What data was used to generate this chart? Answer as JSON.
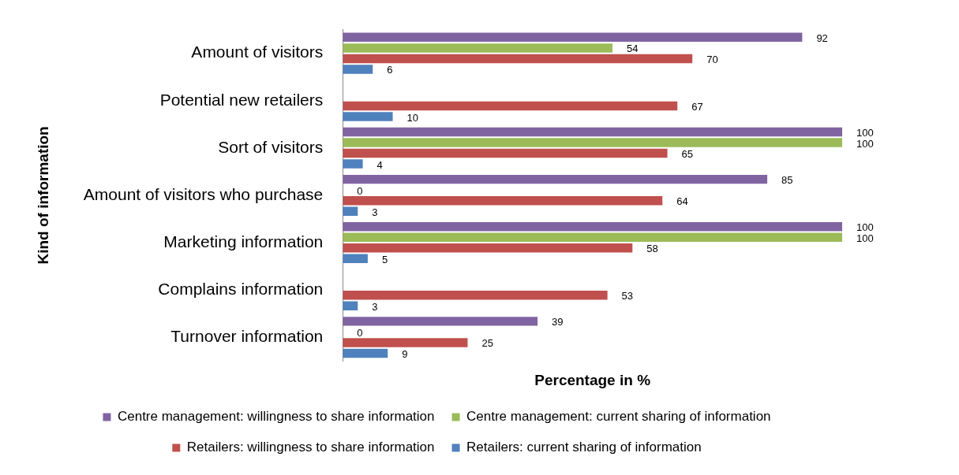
{
  "chart_data": {
    "type": "bar",
    "orientation": "horizontal",
    "xlabel": "Percentage in %",
    "ylabel": "Kind of information",
    "categories": [
      "Amount of visitors",
      "Potential new retailers",
      "Sort of visitors",
      "Amount of visitors who purchase",
      "Marketing information",
      "Complains information",
      "Turnover information"
    ],
    "series": [
      {
        "name": "Centre management: willingness to share information",
        "color": "#8064a2",
        "values": [
          92,
          null,
          100,
          85,
          100,
          null,
          39
        ]
      },
      {
        "name": "Centre management: current sharing of information",
        "color": "#9bbb59",
        "values": [
          54,
          null,
          100,
          0,
          100,
          null,
          0
        ]
      },
      {
        "name": "Retailers: willingness to share information",
        "color": "#c0504d",
        "values": [
          70,
          67,
          65,
          64,
          58,
          53,
          25
        ]
      },
      {
        "name": "Retailers: current sharing of information",
        "color": "#4f81bd",
        "values": [
          6,
          10,
          4,
          3,
          5,
          3,
          9
        ]
      }
    ],
    "xlim": [
      0,
      100
    ],
    "tick_labels": "y",
    "data_labels": true,
    "grid": false,
    "legend": "bottom"
  }
}
